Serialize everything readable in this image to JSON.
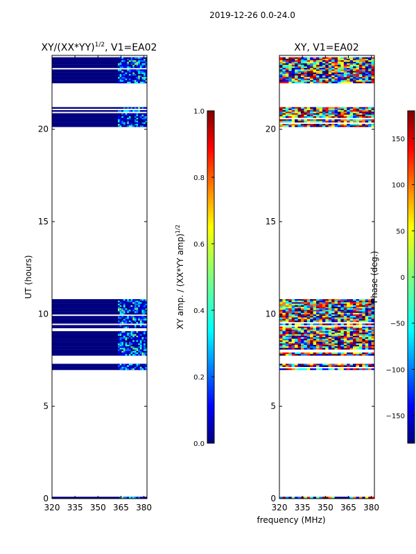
{
  "figure": {
    "suptitle": "2019-12-26 0.0-24.0"
  },
  "colormap": [
    "#00007f",
    "#0000ff",
    "#007fff",
    "#00ffff",
    "#7fff7f",
    "#ffff00",
    "#ff7f00",
    "#ff0000",
    "#7f0000"
  ],
  "chart_data": [
    {
      "type": "heatmap",
      "title": "XY/(XX*YY)",
      "title_sup": "1/2",
      "title_suffix": ", V1=EA02",
      "xlabel": "",
      "ylabel": "UT (hours)",
      "xlim": [
        320,
        382
      ],
      "ylim": [
        0,
        24
      ],
      "xticks": [
        320,
        335,
        350,
        365,
        380
      ],
      "yticks": [
        0,
        5,
        10,
        15,
        20
      ],
      "time_bands_hours": [
        [
          0.0,
          0.1
        ],
        [
          6.9,
          7.3
        ],
        [
          7.8,
          10.8
        ],
        [
          20.2,
          21.2
        ],
        [
          22.5,
          23.9
        ]
      ],
      "bright_freq_range_mhz": [
        363,
        382
      ],
      "colorbar": {
        "label": "XY amp. / (XX*YY amp)",
        "label_sup": "1/2",
        "range": [
          0.0,
          1.0
        ],
        "ticks": [
          "0.0",
          "0.2",
          "0.4",
          "0.6",
          "0.8",
          "1.0"
        ]
      }
    },
    {
      "type": "heatmap",
      "title": "XY, V1=EA02",
      "xlabel": "frequency (MHz)",
      "ylabel": "",
      "xlim": [
        320,
        382
      ],
      "ylim": [
        0,
        24
      ],
      "xticks": [
        320,
        335,
        350,
        365,
        380
      ],
      "yticks": [
        0,
        5,
        10,
        15,
        20
      ],
      "time_bands_hours": [
        [
          0.0,
          0.1
        ],
        [
          6.9,
          7.3
        ],
        [
          7.8,
          10.8
        ],
        [
          20.2,
          21.2
        ],
        [
          22.5,
          23.9
        ]
      ],
      "colorbar": {
        "label": "Phase (deg.)",
        "range": [
          -180,
          180
        ],
        "ticks": [
          "150",
          "100",
          "50",
          "0",
          "−50",
          "−100",
          "−150"
        ],
        "tick_values": [
          150,
          100,
          50,
          0,
          -50,
          -100,
          -150
        ]
      }
    }
  ]
}
